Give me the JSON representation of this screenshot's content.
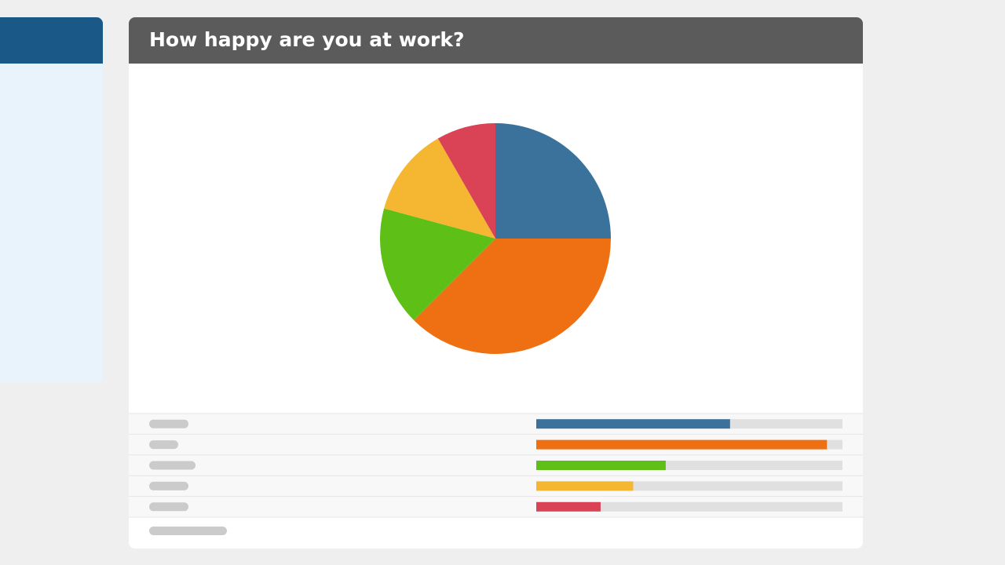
{
  "chart_data": {
    "type": "pie",
    "title": "How happy are you at work?",
    "values": [
      25,
      37.5,
      16.7,
      12.5,
      8.3
    ],
    "colors": [
      "#3a729b",
      "#ee7012",
      "#5ebf17",
      "#f5b731",
      "#d94355"
    ],
    "xlim": [
      0,
      39.5
    ]
  }
}
